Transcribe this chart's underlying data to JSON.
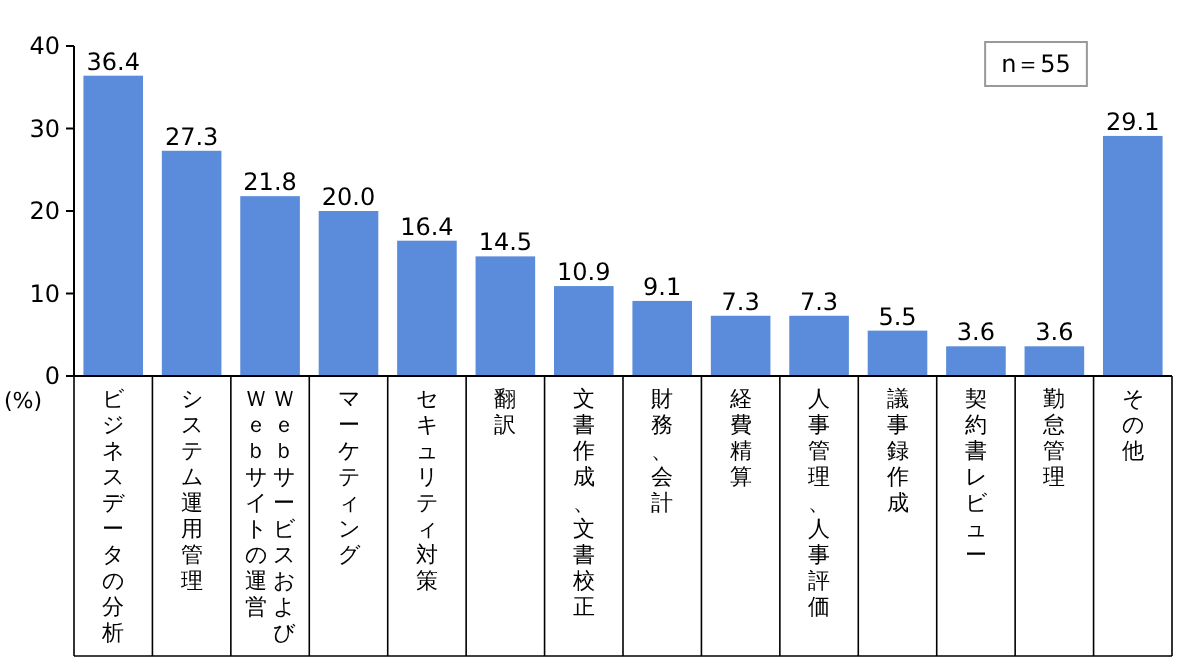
{
  "chart_data": {
    "type": "bar",
    "ylabel": "(%)",
    "categories": [
      "ビジネスデータの分析",
      "システム運用管理",
      "ＷｅｂサービスおよびＷｅｂサイトの運営",
      "マーケティング",
      "セキュリティ対策",
      "翻訳",
      "文書作成、文書校正",
      "財務、会計",
      "経費精算",
      "人事管理、人事評価",
      "議事録作成",
      "契約書レビュー",
      "勤怠管理",
      "その他"
    ],
    "values": [
      36.4,
      27.3,
      21.8,
      20.0,
      16.4,
      14.5,
      10.9,
      9.1,
      7.3,
      7.3,
      5.5,
      3.6,
      3.6,
      29.1
    ],
    "value_labels": [
      "36.4",
      "27.3",
      "21.8",
      "20.0",
      "16.4",
      "14.5",
      "10.9",
      "9.1",
      "7.3",
      "7.3",
      "5.5",
      "3.6",
      "3.6",
      "29.1"
    ],
    "color": "#5b8cdb",
    "ylim": [
      0,
      40
    ],
    "yticks": [
      0,
      10,
      20,
      30,
      40
    ],
    "annotations": [
      "n＝55"
    ],
    "grid": false
  }
}
